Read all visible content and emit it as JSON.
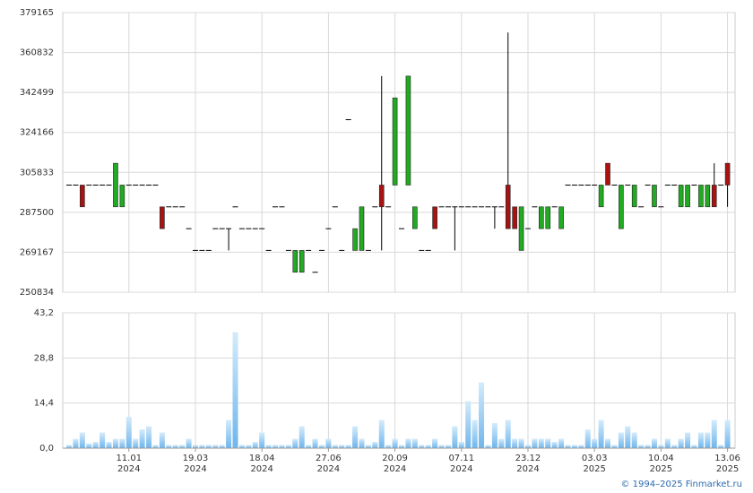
{
  "chart_data": [
    {
      "type": "candlestick",
      "ylim": [
        250834,
        379165
      ],
      "yticks": [
        250834,
        269167,
        287500,
        305833,
        324166,
        342499,
        360832,
        379165
      ],
      "grid": true,
      "up_color": "#22aa22",
      "down_color": "#aa1111",
      "doji_color": "#000000",
      "open": [
        300000,
        300000,
        300000,
        300000,
        300000,
        300000,
        300000,
        290000,
        290000,
        300000,
        300000,
        300000,
        300000,
        300000,
        290000,
        290000,
        290000,
        290000,
        280000,
        270000,
        270000,
        270000,
        280000,
        280000,
        280000,
        290000,
        280000,
        280000,
        280000,
        280000,
        270000,
        290000,
        290000,
        270000,
        260000,
        260000,
        270000,
        260000,
        270000,
        280000,
        290000,
        270000,
        330000,
        270000,
        270000,
        270000,
        290000,
        300000,
        290000,
        300000,
        280000,
        300000,
        280000,
        270000,
        270000,
        290000,
        290000,
        290000,
        290000,
        290000,
        290000,
        290000,
        290000,
        290000,
        290000,
        290000,
        300000,
        290000,
        270000,
        280000,
        290000,
        280000,
        280000,
        290000,
        280000,
        300000,
        300000,
        300000,
        300000,
        300000,
        290000,
        310000,
        300000,
        280000,
        300000,
        290000,
        290000,
        300000,
        290000,
        290000,
        300000,
        300000,
        290000,
        290000,
        300000,
        290000,
        290000,
        300000,
        300000,
        310000
      ],
      "high": [
        300000,
        300000,
        300000,
        300000,
        300000,
        300000,
        300000,
        310000,
        300000,
        300000,
        300000,
        300000,
        300000,
        300000,
        290000,
        290000,
        290000,
        290000,
        280000,
        270000,
        270000,
        270000,
        280000,
        280000,
        280000,
        290000,
        280000,
        280000,
        280000,
        280000,
        270000,
        290000,
        290000,
        270000,
        270000,
        270000,
        270000,
        260000,
        270000,
        280000,
        290000,
        270000,
        330000,
        280000,
        290000,
        270000,
        290000,
        350000,
        290000,
        340000,
        280000,
        350000,
        290000,
        270000,
        270000,
        290000,
        290000,
        290000,
        290000,
        290000,
        290000,
        290000,
        290000,
        290000,
        290000,
        290000,
        370000,
        290000,
        290000,
        280000,
        290000,
        290000,
        290000,
        290000,
        290000,
        300000,
        300000,
        300000,
        300000,
        300000,
        300000,
        310000,
        300000,
        300000,
        300000,
        300000,
        290000,
        300000,
        300000,
        290000,
        300000,
        300000,
        300000,
        300000,
        300000,
        300000,
        300000,
        310000,
        300000,
        310000
      ],
      "low": [
        300000,
        300000,
        290000,
        300000,
        300000,
        300000,
        300000,
        290000,
        290000,
        300000,
        300000,
        300000,
        300000,
        300000,
        280000,
        290000,
        290000,
        290000,
        280000,
        270000,
        270000,
        270000,
        280000,
        280000,
        270000,
        290000,
        280000,
        280000,
        280000,
        280000,
        270000,
        290000,
        290000,
        270000,
        260000,
        260000,
        270000,
        260000,
        270000,
        280000,
        290000,
        270000,
        330000,
        270000,
        270000,
        270000,
        290000,
        270000,
        290000,
        300000,
        280000,
        300000,
        280000,
        270000,
        270000,
        280000,
        290000,
        290000,
        270000,
        290000,
        290000,
        290000,
        290000,
        290000,
        280000,
        290000,
        280000,
        280000,
        270000,
        280000,
        290000,
        280000,
        280000,
        290000,
        280000,
        300000,
        300000,
        300000,
        300000,
        300000,
        290000,
        300000,
        300000,
        280000,
        300000,
        290000,
        290000,
        300000,
        290000,
        290000,
        300000,
        300000,
        290000,
        290000,
        300000,
        290000,
        290000,
        290000,
        300000,
        290000
      ],
      "close": [
        300000,
        300000,
        290000,
        300000,
        300000,
        300000,
        300000,
        310000,
        300000,
        300000,
        300000,
        300000,
        300000,
        300000,
        280000,
        290000,
        290000,
        290000,
        280000,
        270000,
        270000,
        270000,
        280000,
        280000,
        280000,
        290000,
        280000,
        280000,
        280000,
        280000,
        270000,
        290000,
        290000,
        270000,
        270000,
        270000,
        270000,
        260000,
        270000,
        280000,
        290000,
        270000,
        330000,
        280000,
        290000,
        270000,
        290000,
        290000,
        290000,
        340000,
        280000,
        350000,
        290000,
        270000,
        270000,
        280000,
        290000,
        290000,
        290000,
        290000,
        290000,
        290000,
        290000,
        290000,
        290000,
        290000,
        280000,
        280000,
        290000,
        280000,
        290000,
        290000,
        290000,
        290000,
        290000,
        300000,
        300000,
        300000,
        300000,
        300000,
        300000,
        300000,
        300000,
        300000,
        300000,
        300000,
        290000,
        300000,
        300000,
        290000,
        300000,
        300000,
        300000,
        300000,
        300000,
        300000,
        300000,
        290000,
        300000,
        300000
      ]
    },
    {
      "type": "bar",
      "ylim": [
        0,
        43.2
      ],
      "yticks": [
        {
          "value": 0,
          "label": "0,0"
        },
        {
          "value": 14.4,
          "label": "14,4"
        },
        {
          "value": 28.8,
          "label": "28,8"
        },
        {
          "value": 43.2,
          "label": "43,2"
        }
      ],
      "grid": true,
      "color": "#8fc7f2",
      "categories": [
        null,
        null,
        null,
        null,
        null,
        null,
        null,
        null,
        null,
        "11.01\n2024",
        null,
        null,
        null,
        null,
        null,
        null,
        null,
        null,
        null,
        "19.03\n2024",
        null,
        null,
        null,
        null,
        null,
        null,
        null,
        null,
        null,
        "18.04\n2024",
        null,
        null,
        null,
        null,
        null,
        null,
        null,
        null,
        null,
        "27.06\n2024",
        null,
        null,
        null,
        null,
        null,
        null,
        null,
        null,
        null,
        "20.09\n2024",
        null,
        null,
        null,
        null,
        null,
        null,
        null,
        null,
        null,
        "07.11\n2024",
        null,
        null,
        null,
        null,
        null,
        null,
        null,
        null,
        null,
        "23.12\n2024",
        null,
        null,
        null,
        null,
        null,
        null,
        null,
        null,
        null,
        "03.03\n2025",
        null,
        null,
        null,
        null,
        null,
        null,
        null,
        null,
        null,
        "10.04\n2025",
        null,
        null,
        null,
        null,
        null,
        null,
        null,
        null,
        null,
        "13.06\n2025"
      ],
      "values": [
        1,
        3,
        5,
        1.5,
        2,
        5,
        2,
        3,
        3,
        10,
        3,
        6,
        7,
        1,
        5,
        1,
        1,
        1,
        3,
        1,
        1,
        1,
        1,
        1,
        9,
        37,
        1,
        1,
        2,
        5,
        1,
        1,
        1,
        1,
        3,
        7,
        1,
        3,
        1,
        3,
        1,
        1,
        1,
        7,
        3,
        1,
        2,
        9,
        1,
        3,
        1,
        3,
        3,
        1,
        1,
        3,
        1,
        1,
        7,
        2,
        15,
        9,
        21,
        1,
        8,
        3,
        9,
        3,
        3,
        1,
        3,
        3,
        3,
        2,
        3,
        1,
        1,
        1,
        6,
        3,
        9,
        3,
        1,
        5,
        7,
        5,
        1,
        1,
        3,
        1,
        3,
        1,
        3,
        5,
        1,
        5,
        5,
        9,
        1,
        9
      ]
    }
  ],
  "footer": "© 1994–2025 Finmarket.ru"
}
